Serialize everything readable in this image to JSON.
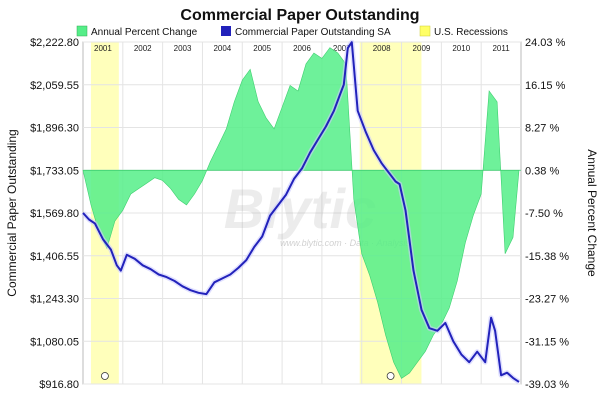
{
  "chart_data": {
    "type": "line",
    "title": "Commercial Paper Outstanding",
    "legend": {
      "placement": "top",
      "entries": [
        {
          "label": "Annual Percent Change",
          "color": "#55ee88",
          "swatch": "area"
        },
        {
          "label": "Commercial Paper Outstanding SA",
          "color": "#2222bb",
          "swatch": "line"
        },
        {
          "label": "U.S. Recessions",
          "color": "#ffff99",
          "swatch": "band"
        }
      ]
    },
    "ylabel_left": "Commercial Paper Outstanding",
    "ylabel_right": "Annual Percent Change",
    "x_years": [
      "2001",
      "2002",
      "2003",
      "2004",
      "2005",
      "2006",
      "2007",
      "2008",
      "2009",
      "2010",
      "2011"
    ],
    "xlim": [
      2001.0,
      2012.0
    ],
    "ylim_left": [
      916.8,
      2222.8
    ],
    "ylim_right": [
      -39.03,
      24.03
    ],
    "yticks_left": [
      "$2,222.80",
      "$2,059.55",
      "$1,896.30",
      "$1,733.05",
      "$1,569.80",
      "$1,406.55",
      "$1,243.30",
      "$1,080.05",
      "$916.80"
    ],
    "yticks_right": [
      "24.03 %",
      "16.15 %",
      "8.27 %",
      "0.38 %",
      "-7.50 %",
      "-15.38 %",
      "-23.27 %",
      "-31.15 %",
      "-39.03 %"
    ],
    "grid": true,
    "recessions": [
      [
        2001.2,
        2001.9
      ],
      [
        2007.95,
        2009.5
      ]
    ],
    "watermark": "Blytic",
    "watermark_sub": "www.blytic.com · Data · Analysis",
    "series": [
      {
        "name": "Commercial Paper Outstanding SA",
        "axis": "left",
        "color": "#2222bb",
        "x": [
          2001.0,
          2001.15,
          2001.3,
          2001.5,
          2001.7,
          2001.85,
          2001.95,
          2002.1,
          2002.3,
          2002.5,
          2002.7,
          2002.9,
          2003.1,
          2003.3,
          2003.5,
          2003.7,
          2003.9,
          2004.1,
          2004.3,
          2004.5,
          2004.7,
          2004.9,
          2005.1,
          2005.3,
          2005.5,
          2005.7,
          2005.9,
          2006.1,
          2006.3,
          2006.5,
          2006.7,
          2006.9,
          2007.1,
          2007.3,
          2007.45,
          2007.55,
          2007.65,
          2007.75,
          2007.9,
          2008.1,
          2008.3,
          2008.5,
          2008.7,
          2008.85,
          2008.95,
          2009.1,
          2009.3,
          2009.5,
          2009.7,
          2009.9,
          2010.1,
          2010.3,
          2010.5,
          2010.7,
          2010.9,
          2011.1,
          2011.25,
          2011.35,
          2011.5,
          2011.65,
          2011.8,
          2011.95
        ],
        "y": [
          1570,
          1545,
          1530,
          1470,
          1430,
          1370,
          1350,
          1410,
          1395,
          1370,
          1355,
          1335,
          1325,
          1310,
          1290,
          1275,
          1265,
          1260,
          1305,
          1320,
          1335,
          1360,
          1390,
          1440,
          1480,
          1560,
          1600,
          1640,
          1700,
          1740,
          1800,
          1850,
          1900,
          1960,
          2020,
          2060,
          2200,
          2222,
          1960,
          1880,
          1810,
          1760,
          1720,
          1690,
          1680,
          1580,
          1350,
          1200,
          1130,
          1120,
          1150,
          1080,
          1030,
          1000,
          1040,
          1000,
          1170,
          1120,
          950,
          960,
          940,
          925
        ]
      },
      {
        "name": "Annual Percent Change",
        "axis": "right",
        "color": "#55ee88",
        "x": [
          2001.0,
          2001.2,
          2001.4,
          2001.6,
          2001.8,
          2002.0,
          2002.2,
          2002.4,
          2002.6,
          2002.8,
          2003.0,
          2003.2,
          2003.4,
          2003.6,
          2003.8,
          2004.0,
          2004.2,
          2004.4,
          2004.6,
          2004.8,
          2005.0,
          2005.2,
          2005.4,
          2005.6,
          2005.8,
          2006.0,
          2006.2,
          2006.4,
          2006.6,
          2006.8,
          2007.0,
          2007.2,
          2007.4,
          2007.6,
          2007.8,
          2008.0,
          2008.2,
          2008.4,
          2008.6,
          2008.8,
          2009.0,
          2009.2,
          2009.4,
          2009.6,
          2009.8,
          2010.0,
          2010.2,
          2010.4,
          2010.6,
          2010.8,
          2011.0,
          2011.2,
          2011.4,
          2011.6,
          2011.8,
          2011.95
        ],
        "y": [
          0.38,
          -6,
          -11,
          -14,
          -9,
          -7,
          -4,
          -3,
          -2,
          -1,
          -1.5,
          -3,
          -5,
          -6,
          -4,
          -1.5,
          2,
          5,
          8,
          13,
          17,
          19,
          13,
          10,
          8,
          12,
          16,
          15,
          20,
          22,
          21,
          23,
          22,
          20,
          -5,
          -15,
          -19,
          -24,
          -30,
          -35,
          -38,
          -37,
          -35,
          -33,
          -30,
          -28,
          -25,
          -20,
          -13,
          -8,
          -4,
          15,
          13,
          -15,
          -12,
          0.38
        ]
      }
    ]
  }
}
